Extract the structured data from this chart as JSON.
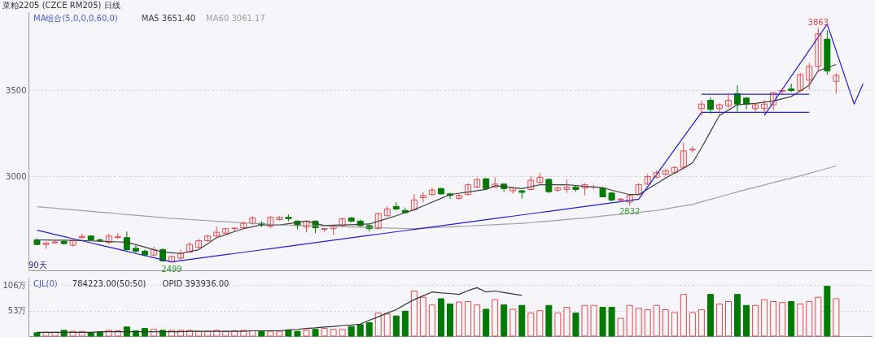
{
  "chart_data": [
    {
      "type": "candlestick",
      "title": "菜粕2205 (CZCE RM205) 日线",
      "subtitle": "MA组合(5,0,0,0,60,0)",
      "categories": [
        null,
        null,
        null,
        null,
        null,
        null,
        null,
        null,
        null,
        null,
        null,
        null,
        null,
        null,
        null,
        null,
        null,
        null,
        null,
        null,
        null,
        null,
        null,
        null,
        null,
        null,
        null,
        null,
        null,
        null,
        null,
        null,
        null,
        null,
        null,
        null,
        null,
        null,
        null,
        null,
        null,
        null,
        null,
        null,
        null,
        null,
        null,
        null,
        null,
        null,
        null,
        null,
        null,
        null,
        null,
        null,
        null,
        null,
        null,
        null,
        null,
        null,
        null,
        null,
        null,
        null,
        null,
        null,
        null,
        null,
        null,
        null,
        null,
        null,
        null,
        null,
        null,
        null,
        null,
        null,
        null,
        null,
        null,
        null,
        null,
        null,
        null,
        null,
        null,
        null,
        null,
        null,
        null
      ],
      "ohlc": [
        [
          2632,
          2640,
          2600,
          2605
        ],
        [
          2605,
          2618,
          2579,
          2614
        ],
        [
          2615,
          2628,
          2610,
          2620
        ],
        [
          2623,
          2628,
          2605,
          2610
        ],
        [
          2601,
          2640,
          2592,
          2627
        ],
        [
          2645,
          2667,
          2640,
          2652
        ],
        [
          2654,
          2658,
          2630,
          2632
        ],
        [
          2632,
          2640,
          2620,
          2628
        ],
        [
          2618,
          2667,
          2605,
          2654
        ],
        [
          2645,
          2672,
          2640,
          2650
        ],
        [
          2645,
          2680,
          2570,
          2575
        ],
        [
          2583,
          2600,
          2557,
          2566
        ],
        [
          2566,
          2575,
          2535,
          2544
        ],
        [
          2544,
          2592,
          2540,
          2575
        ],
        [
          2575,
          2583,
          2505,
          2510
        ],
        [
          2504,
          2540,
          2499,
          2535
        ],
        [
          2526,
          2575,
          2518,
          2553
        ],
        [
          2561,
          2618,
          2557,
          2605
        ],
        [
          2588,
          2640,
          2583,
          2627
        ],
        [
          2627,
          2662,
          2620,
          2654
        ],
        [
          2654,
          2710,
          2650,
          2676
        ],
        [
          2671,
          2700,
          2662,
          2697
        ],
        [
          2697,
          2705,
          2680,
          2700
        ],
        [
          2702,
          2740,
          2697,
          2728
        ],
        [
          2728,
          2770,
          2720,
          2759
        ],
        [
          2728,
          2740,
          2705,
          2720
        ],
        [
          2711,
          2770,
          2700,
          2763
        ],
        [
          2750,
          2770,
          2745,
          2763
        ],
        [
          2763,
          2780,
          2740,
          2755
        ],
        [
          2741,
          2745,
          2693,
          2715
        ],
        [
          2706,
          2745,
          2675,
          2741
        ],
        [
          2741,
          2745,
          2671,
          2702
        ],
        [
          2693,
          2700,
          2680,
          2697
        ],
        [
          2697,
          2715,
          2662,
          2710
        ],
        [
          2715,
          2760,
          2706,
          2754
        ],
        [
          2759,
          2765,
          2735,
          2741
        ],
        [
          2741,
          2750,
          2710,
          2715
        ],
        [
          2715,
          2720,
          2680,
          2697
        ],
        [
          2697,
          2790,
          2693,
          2785
        ],
        [
          2772,
          2829,
          2770,
          2811
        ],
        [
          2825,
          2851,
          2805,
          2811
        ],
        [
          2803,
          2820,
          2785,
          2790
        ],
        [
          2807,
          2899,
          2800,
          2864
        ],
        [
          2877,
          2910,
          2851,
          2890
        ],
        [
          2895,
          2935,
          2890,
          2921
        ],
        [
          2930,
          2935,
          2895,
          2899
        ],
        [
          2899,
          2905,
          2870,
          2890
        ],
        [
          2873,
          2900,
          2865,
          2890
        ],
        [
          2895,
          2960,
          2890,
          2952
        ],
        [
          2939,
          2990,
          2935,
          2983
        ],
        [
          2987,
          2990,
          2925,
          2930
        ],
        [
          2939,
          2996,
          2935,
          2956
        ],
        [
          2956,
          2960,
          2912,
          2930
        ],
        [
          2917,
          2940,
          2900,
          2934
        ],
        [
          2917,
          2920,
          2873,
          2908
        ],
        [
          2925,
          3000,
          2920,
          2978
        ],
        [
          2965,
          3022,
          2960,
          2996
        ],
        [
          2983,
          2990,
          2905,
          2912
        ],
        [
          2921,
          2940,
          2912,
          2934
        ],
        [
          2925,
          2983,
          2905,
          2939
        ],
        [
          2939,
          2950,
          2910,
          2925
        ],
        [
          2934,
          2960,
          2890,
          2952
        ],
        [
          2939,
          2950,
          2925,
          2939
        ],
        [
          2934,
          2940,
          2880,
          2882
        ],
        [
          2904,
          2910,
          2855,
          2864
        ],
        [
          2864,
          2875,
          2855,
          2869
        ],
        [
          2851,
          2895,
          2832,
          2890
        ],
        [
          2895,
          2960,
          2890,
          2952
        ],
        [
          2956,
          3015,
          2950,
          3000
        ],
        [
          2996,
          3035,
          2990,
          3022
        ],
        [
          3013,
          3040,
          3005,
          3035
        ],
        [
          3022,
          3060,
          3015,
          3053
        ],
        [
          3053,
          3197,
          3040,
          3149
        ],
        [
          3154,
          3175,
          3140,
          3158
        ],
        [
          3395,
          3440,
          3355,
          3421
        ],
        [
          3443,
          3460,
          3364,
          3390
        ],
        [
          3395,
          3425,
          3360,
          3417
        ],
        [
          3412,
          3487,
          3400,
          3443
        ],
        [
          3482,
          3531,
          3377,
          3421
        ],
        [
          3456,
          3460,
          3390,
          3421
        ],
        [
          3395,
          3425,
          3370,
          3417
        ],
        [
          3395,
          3445,
          3365,
          3421
        ],
        [
          3417,
          3490,
          3385,
          3487
        ],
        [
          3496,
          3515,
          3480,
          3500
        ],
        [
          3509,
          3540,
          3490,
          3500
        ],
        [
          3500,
          3600,
          3490,
          3592
        ],
        [
          3561,
          3660,
          3504,
          3640
        ],
        [
          3640,
          3863,
          3605,
          3829
        ],
        [
          3798,
          3850,
          3592,
          3614
        ],
        [
          3553,
          3600,
          3482,
          3588
        ],
        null,
        null,
        null
      ],
      "colors": [
        "#007a00",
        "#e8474c",
        "#e8474c",
        "#007a00",
        "#e8474c",
        "#e8474c",
        "#007a00",
        "#007a00",
        "#e8474c",
        "#e8474c",
        "#007a00",
        "#007a00",
        "#007a00",
        "#e8474c",
        "#007a00",
        "#e8474c",
        "#e8474c",
        "#e8474c",
        "#e8474c",
        "#e8474c",
        "#e8474c",
        "#e8474c",
        "#e8474c",
        "#e8474c",
        "#e8474c",
        "#007a00",
        "#e8474c",
        "#e8474c",
        "#007a00",
        "#007a00",
        "#e8474c",
        "#007a00",
        "#e8474c",
        "#e8474c",
        "#e8474c",
        "#007a00",
        "#007a00",
        "#007a00",
        "#e8474c",
        "#e8474c",
        "#007a00",
        "#007a00",
        "#e8474c",
        "#e8474c",
        "#e8474c",
        "#007a00",
        "#007a00",
        "#e8474c",
        "#e8474c",
        "#e8474c",
        "#007a00",
        "#e8474c",
        "#007a00",
        "#e8474c",
        "#007a00",
        "#e8474c",
        "#e8474c",
        "#007a00",
        "#e8474c",
        "#e8474c",
        "#007a00",
        "#e8474c",
        "#e8474c",
        "#007a00",
        "#007a00",
        "#e8474c",
        "#e8474c",
        "#e8474c",
        "#e8474c",
        "#e8474c",
        "#e8474c",
        "#e8474c",
        "#e8474c",
        "#e8474c",
        "#e8474c",
        "#007a00",
        "#e8474c",
        "#e8474c",
        "#007a00",
        "#007a00",
        "#e8474c",
        "#e8474c",
        "#e8474c",
        "#e8474c",
        "#007a00",
        "#e8474c",
        "#e8474c",
        "#e8474c",
        "#007a00",
        "#e8474c",
        null,
        null,
        null
      ],
      "series": [
        {
          "name": "MA5 3651.40",
          "type": "line",
          "color": "#404040",
          "values": [
            2632,
            2631,
            2630,
            2630,
            2629,
            2628,
            2626,
            2624,
            2622,
            2620,
            2618,
            2604,
            2590,
            2575,
            2561,
            2557,
            2553,
            2564,
            2575,
            2610,
            2645,
            2662,
            2680,
            2697,
            2708,
            2719,
            2719,
            2719,
            2726,
            2734,
            2741,
            2728,
            2715,
            2717,
            2719,
            2720,
            2722,
            2724,
            2740,
            2756,
            2772,
            2790,
            2807,
            2829,
            2851,
            2873,
            2895,
            2903,
            2910,
            2918,
            2925,
            2947,
            2941,
            2936,
            2930,
            2941,
            2952,
            2952,
            2952,
            2952,
            2948,
            2943,
            2939,
            2934,
            2921,
            2908,
            2895,
            2895,
            2927,
            2959,
            2991,
            3020,
            3050,
            3079,
            3167,
            3261,
            3355,
            3386,
            3417,
            3421,
            3425,
            3432,
            3439,
            3452,
            3465,
            3498,
            3531,
            3614,
            3633,
            3651,
            null,
            null,
            null
          ]
        },
        {
          "name": "MA60 3061.17",
          "type": "line",
          "color": "#a0a0a0",
          "values": [
            2825,
            2820,
            2816,
            2811,
            2807,
            2802,
            2798,
            2793,
            2789,
            2784,
            2779,
            2775,
            2770,
            2766,
            2761,
            2757,
            2754,
            2751,
            2747,
            2744,
            2740,
            2737,
            2734,
            2731,
            2728,
            2725,
            2722,
            2719,
            2718,
            2716,
            2715,
            2713,
            2712,
            2710,
            2709,
            2707,
            2706,
            2704,
            2703,
            2701,
            2700,
            2698,
            2697,
            2700,
            2702,
            2705,
            2707,
            2710,
            2712,
            2715,
            2718,
            2720,
            2723,
            2725,
            2728,
            2732,
            2737,
            2741,
            2746,
            2750,
            2755,
            2759,
            2765,
            2770,
            2776,
            2781,
            2787,
            2792,
            2798,
            2803,
            2812,
            2821,
            2829,
            2838,
            2853,
            2867,
            2882,
            2896,
            2911,
            2925,
            2938,
            2951,
            2965,
            2978,
            2991,
            3004,
            3018,
            3033,
            3047,
            3061,
            null,
            null,
            null
          ]
        },
        {
          "type": "line",
          "color": "#1f1fd6",
          "values": [
            2688,
            2676,
            2663,
            2651,
            2639,
            2627,
            2614,
            2602,
            2590,
            2578,
            2565,
            2553,
            2541,
            2529,
            2516,
            2504,
            2511,
            2518,
            2525,
            2532,
            2539,
            2546,
            2553,
            2560,
            2567,
            2574,
            2581,
            2588,
            2595,
            2602,
            2609,
            2616,
            2623,
            2630,
            2637,
            2644,
            2651,
            2658,
            2665,
            2672,
            2679,
            2686,
            2693,
            2700,
            2707,
            2714,
            2721,
            2728,
            2735,
            2742,
            2749,
            2756,
            2763,
            2770,
            2777,
            2784,
            2791,
            2798,
            2805,
            2812,
            2819,
            2826,
            2833,
            2840,
            2847,
            2854,
            2861,
            2868,
            2940,
            3012,
            3084,
            3157,
            3229,
            3301,
            3373,
            null,
            null,
            null,
            null,
            null,
            null,
            null,
            null,
            null,
            null,
            null,
            null,
            null,
            null,
            null,
            null,
            null,
            null
          ]
        },
        {
          "type": "line",
          "color": "#1f1fd6",
          "values": [
            null,
            null,
            null,
            null,
            null,
            null,
            null,
            null,
            null,
            null,
            null,
            null,
            null,
            null,
            null,
            null,
            null,
            null,
            null,
            null,
            null,
            null,
            null,
            null,
            null,
            null,
            null,
            null,
            null,
            null,
            null,
            null,
            null,
            null,
            null,
            null,
            null,
            null,
            null,
            null,
            null,
            null,
            null,
            null,
            null,
            null,
            null,
            null,
            null,
            null,
            null,
            null,
            null,
            null,
            null,
            null,
            null,
            null,
            null,
            null,
            null,
            null,
            null,
            null,
            null,
            null,
            null,
            null,
            null,
            null,
            null,
            null,
            null,
            null,
            3478,
            3478,
            3478,
            3478,
            3478,
            3478,
            3478,
            3478,
            3478,
            3478,
            3478,
            3478,
            3478,
            null,
            null,
            null,
            null,
            null,
            null
          ]
        },
        {
          "type": "line",
          "color": "#1f1fd6",
          "values": [
            null,
            null,
            null,
            null,
            null,
            null,
            null,
            null,
            null,
            null,
            null,
            null,
            null,
            null,
            null,
            null,
            null,
            null,
            null,
            null,
            null,
            null,
            null,
            null,
            null,
            null,
            null,
            null,
            null,
            null,
            null,
            null,
            null,
            null,
            null,
            null,
            null,
            null,
            null,
            null,
            null,
            null,
            null,
            null,
            null,
            null,
            null,
            null,
            null,
            null,
            null,
            null,
            null,
            null,
            null,
            null,
            null,
            null,
            null,
            null,
            null,
            null,
            null,
            null,
            null,
            null,
            null,
            null,
            null,
            null,
            null,
            null,
            null,
            null,
            3373,
            3373,
            3373,
            3373,
            3373,
            3373,
            3373,
            3373,
            3373,
            3373,
            3373,
            3373,
            3373,
            null,
            null,
            null,
            null,
            null,
            null
          ]
        },
        {
          "type": "line",
          "color": "#1f1fd6",
          "values": [
            null,
            null,
            null,
            null,
            null,
            null,
            null,
            null,
            null,
            null,
            null,
            null,
            null,
            null,
            null,
            null,
            null,
            null,
            null,
            null,
            null,
            null,
            null,
            null,
            null,
            null,
            null,
            null,
            null,
            null,
            null,
            null,
            null,
            null,
            null,
            null,
            null,
            null,
            null,
            null,
            null,
            null,
            null,
            null,
            null,
            null,
            null,
            null,
            null,
            null,
            null,
            null,
            null,
            null,
            null,
            null,
            null,
            null,
            null,
            null,
            null,
            null,
            null,
            null,
            null,
            null,
            null,
            null,
            null,
            null,
            null,
            null,
            null,
            null,
            null,
            null,
            null,
            null,
            null,
            null,
            null,
            3355,
            3431,
            3507,
            3583,
            3658,
            3734,
            3810,
            3886,
            3731,
            3576,
            3421,
            3540
          ]
        }
      ],
      "ylim": [
        2455,
        3955
      ],
      "yticks": [
        3000,
        3500
      ],
      "grid": "y",
      "tick_labels": "y",
      "annotations": [
        "90天",
        {
          "text": "2499",
          "y": 2499
        },
        {
          "text": "2832",
          "y": 2832
        },
        {
          "text": "3863",
          "y": 3863
        }
      ]
    },
    {
      "type": "bar",
      "title": "CJL(0)",
      "subtitle": "784223.00(50:50)",
      "categories": [
        null,
        null,
        null,
        null,
        null,
        null,
        null,
        null,
        null,
        null,
        null,
        null,
        null,
        null,
        null,
        null,
        null,
        null,
        null,
        null,
        null,
        null,
        null,
        null,
        null,
        null,
        null,
        null,
        null,
        null,
        null,
        null,
        null,
        null,
        null,
        null,
        null,
        null,
        null,
        null,
        null,
        null,
        null,
        null,
        null,
        null,
        null,
        null,
        null,
        null,
        null,
        null,
        null,
        null,
        null,
        null,
        null,
        null,
        null,
        null,
        null,
        null,
        null,
        null,
        null,
        null,
        null,
        null,
        null,
        null,
        null,
        null,
        null,
        null,
        null,
        null,
        null,
        null,
        null,
        null,
        null,
        null,
        null,
        null,
        null,
        null,
        null,
        null,
        null,
        null,
        null,
        null,
        null
      ],
      "values": [
        7,
        8,
        8,
        12,
        10,
        10,
        7,
        8,
        12,
        11,
        19,
        11,
        16,
        14,
        12,
        12,
        12,
        12,
        10,
        10,
        12,
        10,
        11,
        12,
        11,
        10,
        10,
        10,
        12,
        10,
        12,
        14,
        16,
        14,
        14,
        20,
        24,
        28,
        48,
        46,
        42,
        52,
        94,
        81,
        65,
        78,
        67,
        71,
        72,
        65,
        56,
        76,
        65,
        56,
        64,
        48,
        53,
        64,
        48,
        60,
        48,
        64,
        64,
        60,
        60,
        37,
        64,
        58,
        55,
        64,
        55,
        49,
        87,
        49,
        55,
        87,
        67,
        72,
        87,
        64,
        64,
        76,
        72,
        70,
        72,
        67,
        72,
        81,
        104,
        78,
        null,
        null,
        null
      ],
      "colors": [
        "#007a00",
        "#e8474c",
        "#e8474c",
        "#007a00",
        "#e8474c",
        "#e8474c",
        "#007a00",
        "#007a00",
        "#e8474c",
        "#e8474c",
        "#007a00",
        "#007a00",
        "#007a00",
        "#e8474c",
        "#007a00",
        "#e8474c",
        "#e8474c",
        "#e8474c",
        "#e8474c",
        "#e8474c",
        "#e8474c",
        "#e8474c",
        "#e8474c",
        "#e8474c",
        "#e8474c",
        "#007a00",
        "#e8474c",
        "#e8474c",
        "#007a00",
        "#007a00",
        "#e8474c",
        "#007a00",
        "#e8474c",
        "#e8474c",
        "#e8474c",
        "#007a00",
        "#007a00",
        "#007a00",
        "#e8474c",
        "#e8474c",
        "#007a00",
        "#007a00",
        "#e8474c",
        "#e8474c",
        "#e8474c",
        "#007a00",
        "#007a00",
        "#e8474c",
        "#e8474c",
        "#e8474c",
        "#007a00",
        "#e8474c",
        "#007a00",
        "#e8474c",
        "#007a00",
        "#e8474c",
        "#e8474c",
        "#007a00",
        "#e8474c",
        "#e8474c",
        "#007a00",
        "#e8474c",
        "#e8474c",
        "#007a00",
        "#007a00",
        "#e8474c",
        "#e8474c",
        "#e8474c",
        "#e8474c",
        "#e8474c",
        "#e8474c",
        "#e8474c",
        "#e8474c",
        "#e8474c",
        "#e8474c",
        "#007a00",
        "#e8474c",
        "#e8474c",
        "#007a00",
        "#007a00",
        "#e8474c",
        "#e8474c",
        "#e8474c",
        "#e8474c",
        "#007a00",
        "#e8474c",
        "#e8474c",
        "#e8474c",
        "#007a00",
        "#e8474c",
        null,
        null,
        null
      ],
      "series": [
        {
          "name": "OPID 393936.00",
          "type": "line",
          "color": "#333333",
          "values": [
            8,
            8,
            8,
            8,
            8,
            8,
            8,
            9,
            9,
            9,
            9,
            9,
            9,
            9,
            9,
            9,
            9,
            10,
            10,
            10,
            10,
            10,
            10,
            10,
            11,
            11,
            11,
            11,
            13,
            14,
            16,
            17,
            19,
            20,
            22,
            23,
            25,
            33,
            40,
            48,
            55,
            66,
            76,
            84,
            92,
            90,
            89,
            87,
            95,
            101,
            92,
            94,
            91,
            88,
            85,
            null,
            null,
            null,
            null,
            null,
            null,
            null,
            null,
            null,
            null,
            null,
            null,
            null,
            null,
            null,
            null,
            null,
            null,
            null,
            null,
            null,
            null,
            null,
            null,
            null,
            null,
            null,
            null,
            null,
            null,
            null,
            null,
            null,
            null,
            null,
            null,
            null,
            null
          ]
        }
      ],
      "ylim": [
        0,
        122
      ],
      "yticks": [
        {
          "value": 53,
          "label": "53万"
        },
        {
          "value": 106,
          "label": "106万"
        }
      ],
      "grid": "y",
      "tick_labels": "y"
    }
  ]
}
